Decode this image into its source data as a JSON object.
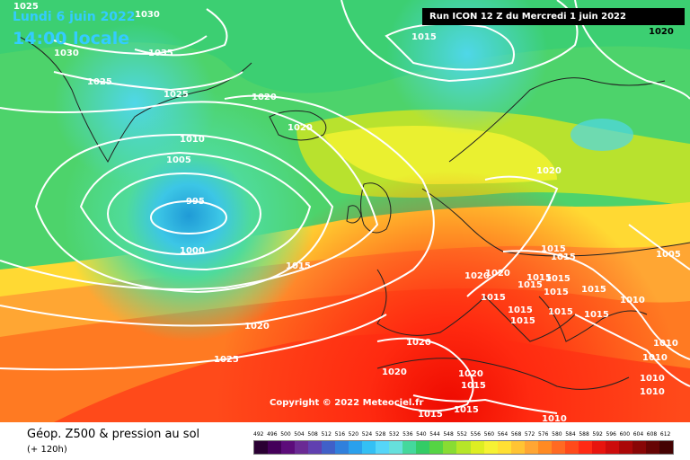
{
  "header": {
    "date": "Lundi 6 juin 2022",
    "local_time": "14:00 locale",
    "run_info": "Run ICON 12 Z du Mercredi 1 juin 2022"
  },
  "copyright": "Copyright © 2022 Meteociel.fr",
  "footer": {
    "title": "Géop. Z500 & pression au sol",
    "lead_time": "(+ 120h)"
  },
  "colors": {
    "background_low": "#33cc66",
    "background_high": "#ff1a00",
    "isobar": "#ffffff",
    "coast": "#222222",
    "title_text": "#33ccff"
  },
  "map": {
    "isobar_labels": [
      {
        "text": "1025"
      },
      {
        "text": "1030"
      },
      {
        "text": "1030"
      },
      {
        "text": "1035"
      },
      {
        "text": "1025"
      },
      {
        "text": "1025"
      },
      {
        "text": "1020"
      },
      {
        "text": "1020"
      },
      {
        "text": "1015"
      },
      {
        "text": "1020"
      },
      {
        "text": "1010"
      },
      {
        "text": "1005"
      },
      {
        "text": "995"
      },
      {
        "text": "1000"
      },
      {
        "text": "1015"
      },
      {
        "text": "1020"
      },
      {
        "text": "1025"
      },
      {
        "text": "1020"
      },
      {
        "text": "1015"
      },
      {
        "text": "1015"
      },
      {
        "text": "1020"
      },
      {
        "text": "1020"
      },
      {
        "text": "1015"
      },
      {
        "text": "1015"
      },
      {
        "text": "1015"
      },
      {
        "text": "1015"
      },
      {
        "text": "1015"
      },
      {
        "text": "1015"
      },
      {
        "text": "1015"
      },
      {
        "text": "1015"
      },
      {
        "text": "1015"
      },
      {
        "text": "1015"
      },
      {
        "text": "1010"
      },
      {
        "text": "1010"
      },
      {
        "text": "1010"
      },
      {
        "text": "1005"
      },
      {
        "text": "1010"
      },
      {
        "text": "1010"
      },
      {
        "text": "1020"
      },
      {
        "text": "1020"
      },
      {
        "text": "1020"
      },
      {
        "text": "1015"
      },
      {
        "text": "1015"
      },
      {
        "text": "1015"
      },
      {
        "text": "1010"
      }
    ]
  },
  "legend": {
    "scale_values": [
      "492",
      "496",
      "500",
      "504",
      "508",
      "512",
      "516",
      "520",
      "524",
      "528",
      "532",
      "536",
      "540",
      "544",
      "548",
      "552",
      "556",
      "560",
      "564",
      "568",
      "572",
      "576",
      "580",
      "584",
      "588",
      "592",
      "596",
      "600",
      "604",
      "608",
      "612"
    ],
    "scale_colors": [
      "#2a0033",
      "#44005a",
      "#5c0c7a",
      "#6a2a94",
      "#6040b0",
      "#4060c8",
      "#3080dc",
      "#2aa0ec",
      "#33c0f4",
      "#55d6f8",
      "#66e0dc",
      "#44d89c",
      "#33cc66",
      "#55d444",
      "#88dc33",
      "#b6e628",
      "#ddee22",
      "#f6f233",
      "#ffe033",
      "#ffc433",
      "#ffa633",
      "#ff8a22",
      "#ff6a22",
      "#ff4a1a",
      "#ff2a14",
      "#e8140e",
      "#cc0c0c",
      "#aa0808",
      "#880606",
      "#660404",
      "#440202"
    ]
  }
}
